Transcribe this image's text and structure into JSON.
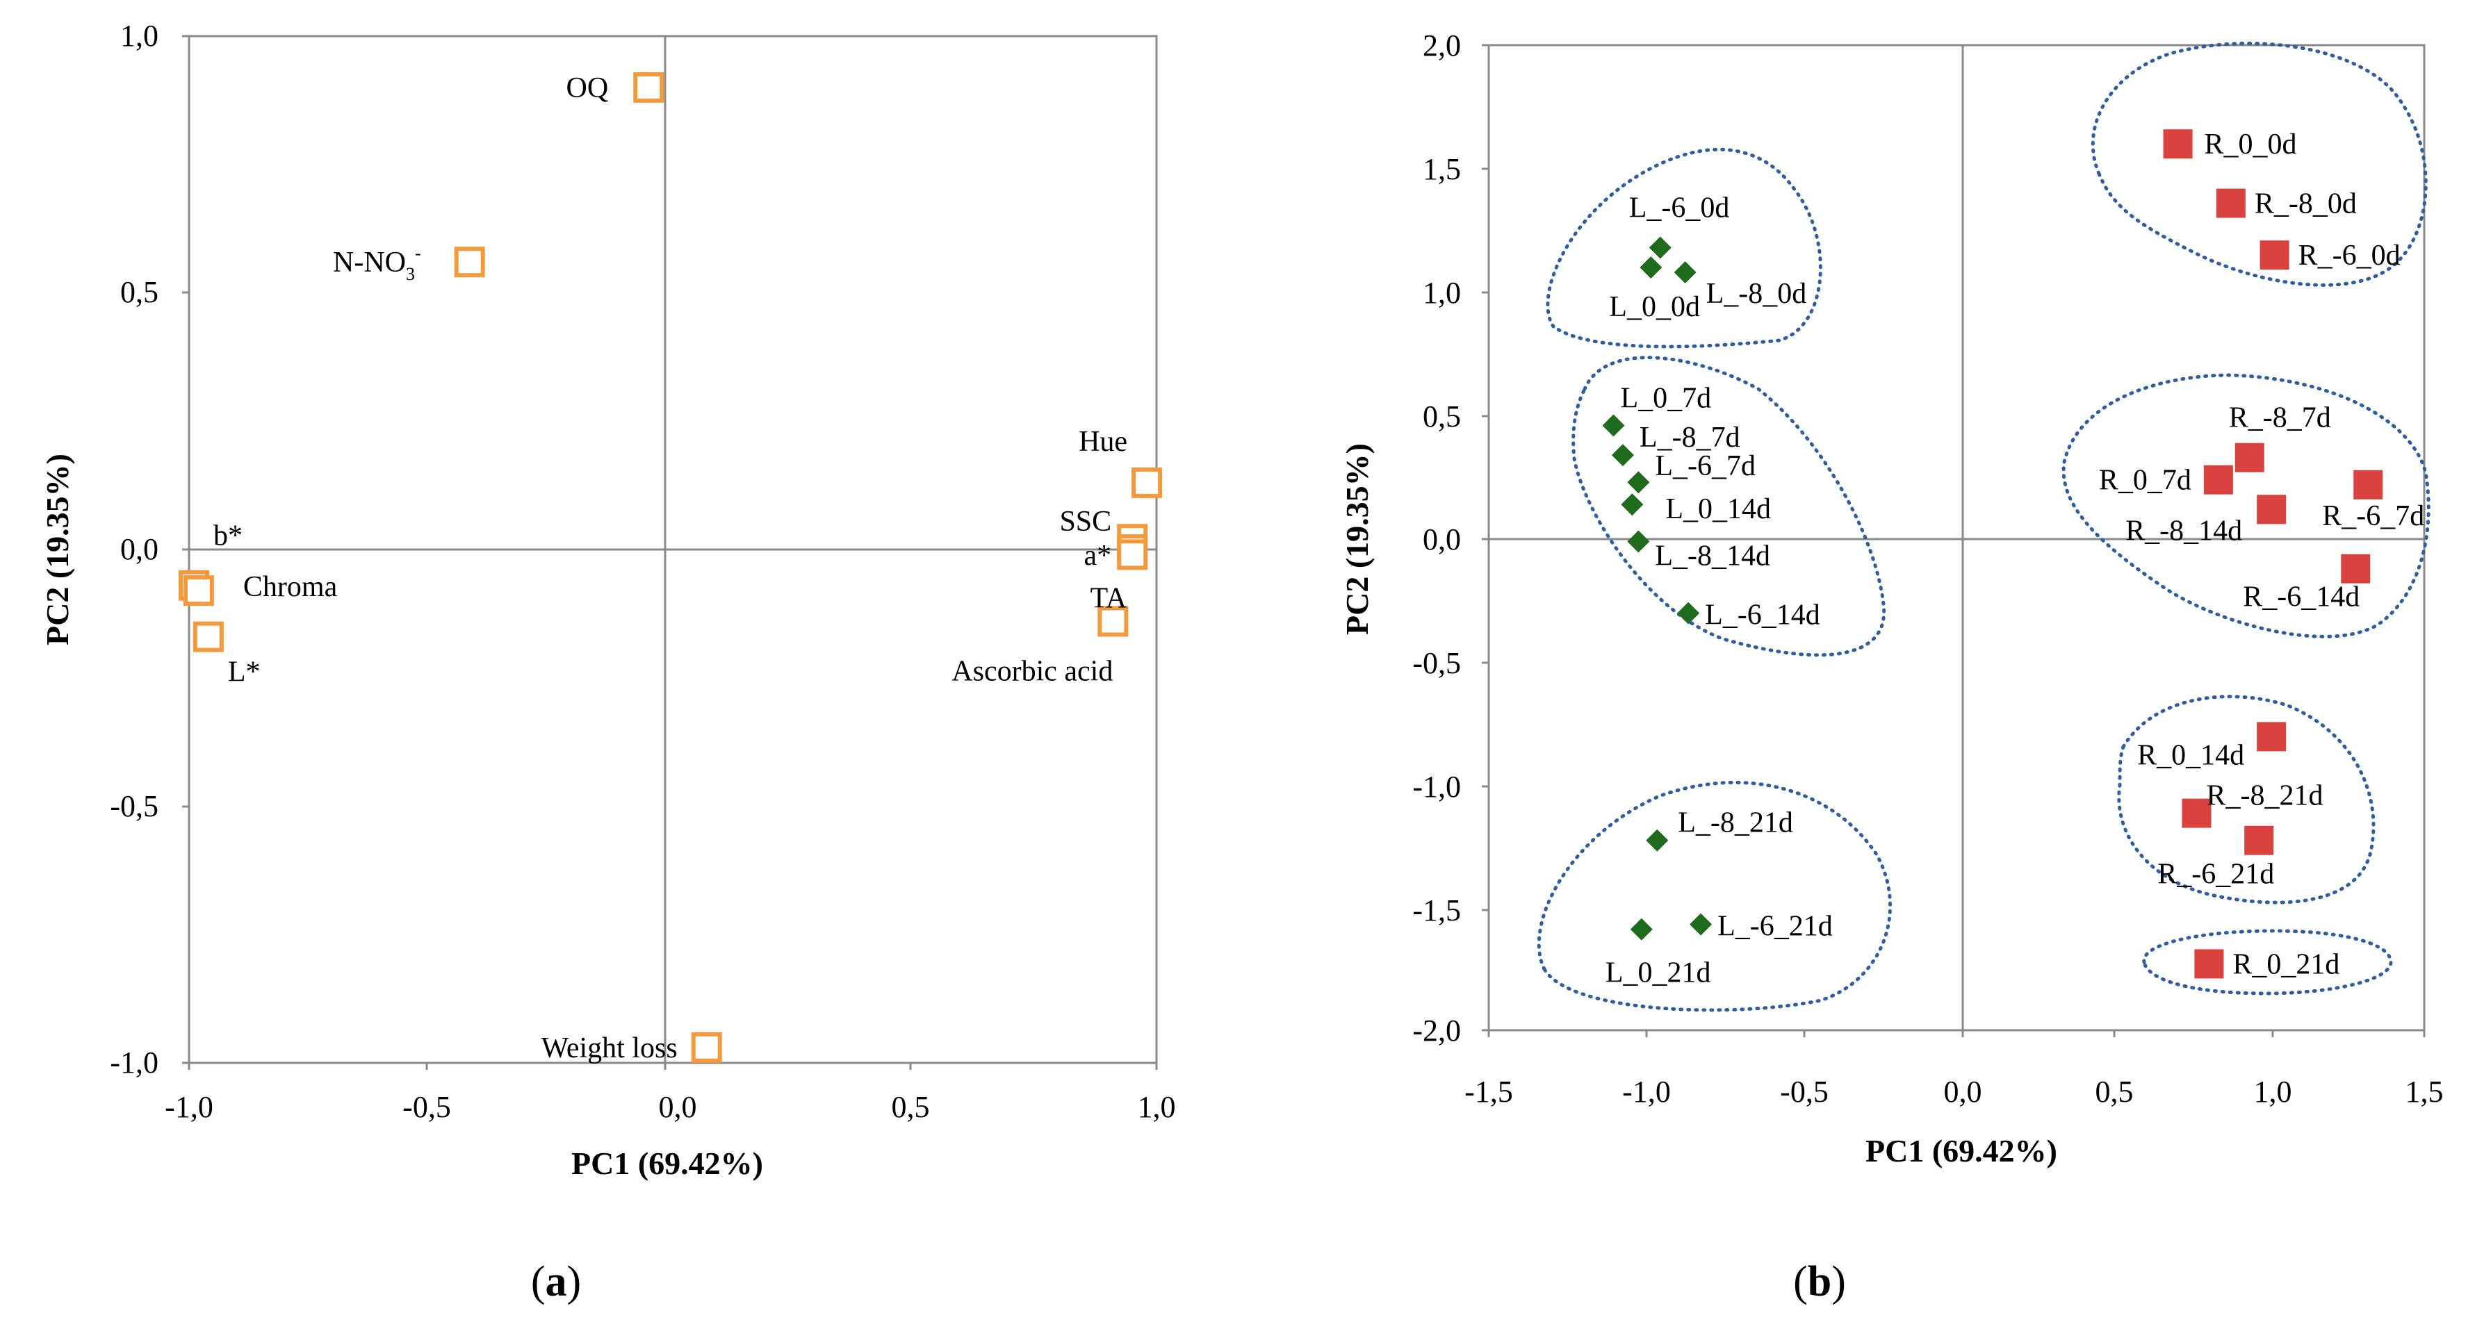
{
  "chart_data": [
    {
      "type": "scatter",
      "panel_label": "a",
      "xlabel": "PC1 (69.42%)",
      "ylabel": "PC2 (19.35%)",
      "xlim": [
        -1.0,
        1.0
      ],
      "ylim": [
        -1.0,
        1.0
      ],
      "xticks": [
        "-1,0",
        "-0,5",
        "0,0",
        "0,5",
        "1,0"
      ],
      "yticks": [
        "1,0",
        "0,5",
        "0,0",
        "-0,5",
        "-1,0"
      ],
      "marker_color": "#F39A3D",
      "points": [
        {
          "label": "OQ",
          "x": -0.05,
          "y": 0.9
        },
        {
          "label": "N-NO3-",
          "x": -0.42,
          "y": 0.56
        },
        {
          "label": "Hue",
          "x": 0.98,
          "y": 0.13
        },
        {
          "label": "SSC",
          "x": 0.95,
          "y": 0.02
        },
        {
          "label": "a*",
          "x": 0.95,
          "y": 0.0
        },
        {
          "label": "TA",
          "x": 0.95,
          "y": -0.01
        },
        {
          "label": "Ascorbic acid",
          "x": 0.91,
          "y": -0.14
        },
        {
          "label": "b*",
          "x": -0.99,
          "y": -0.07
        },
        {
          "label": "Chroma",
          "x": -0.98,
          "y": -0.08
        },
        {
          "label": "L*",
          "x": -0.96,
          "y": -0.17
        },
        {
          "label": "Weight loss",
          "x": 0.07,
          "y": -0.97
        }
      ],
      "n_no3_parts": {
        "base": "N-NO",
        "sub": "3",
        "sup": "-"
      }
    },
    {
      "type": "scatter",
      "panel_label": "b",
      "xlabel": "PC1 (69.42%)",
      "ylabel": "PC2 (19.35%)",
      "xlim": [
        -1.5,
        1.5
      ],
      "ylim": [
        -2.0,
        2.0
      ],
      "xticks": [
        "-1,5",
        "-1,0",
        "-0,5",
        "0,0",
        "0,5",
        "1,0",
        "1,5"
      ],
      "yticks": [
        "2,0",
        "1,5",
        "1,0",
        "0,5",
        "0,0",
        "-0,5",
        "-1,0",
        "-1,5",
        "-2,0"
      ],
      "series": [
        {
          "name": "L",
          "marker": "diamond",
          "color": "#1E6B1E",
          "points": [
            {
              "label": "L_-6_0d",
              "x": -0.95,
              "y": 1.18
            },
            {
              "label": "L_0_0d",
              "x": -0.98,
              "y": 1.1
            },
            {
              "label": "L_-8_0d",
              "x": -0.87,
              "y": 1.08
            },
            {
              "label": "L_0_7d",
              "x": -1.1,
              "y": 0.46
            },
            {
              "label": "L_-8_7d",
              "x": -1.07,
              "y": 0.34
            },
            {
              "label": "L_-6_7d",
              "x": -1.02,
              "y": 0.23
            },
            {
              "label": "L_0_14d",
              "x": -1.04,
              "y": 0.14
            },
            {
              "label": "L_-8_14d",
              "x": -1.02,
              "y": -0.01
            },
            {
              "label": "L_-6_14d",
              "x": -0.86,
              "y": -0.3
            },
            {
              "label": "L_-8_21d",
              "x": -0.96,
              "y": -1.22
            },
            {
              "label": "L_-6_21d",
              "x": -0.82,
              "y": -1.56
            },
            {
              "label": "L_0_21d",
              "x": -1.01,
              "y": -1.58
            }
          ]
        },
        {
          "name": "R",
          "marker": "square",
          "color": "#D9423F",
          "points": [
            {
              "label": "R_0_0d",
              "x": 0.71,
              "y": 1.6
            },
            {
              "label": "R_-8_0d",
              "x": 0.88,
              "y": 1.36
            },
            {
              "label": "R_-6_0d",
              "x": 1.02,
              "y": 1.15
            },
            {
              "label": "R_-8_7d",
              "x": 0.94,
              "y": 0.33
            },
            {
              "label": "R_0_7d",
              "x": 0.84,
              "y": 0.24
            },
            {
              "label": "R_-6_7d",
              "x": 1.32,
              "y": 0.22
            },
            {
              "label": "R_-8_14d",
              "x": 1.01,
              "y": 0.12
            },
            {
              "label": "R_-6_14d",
              "x": 1.28,
              "y": -0.12
            },
            {
              "label": "R_0_14d",
              "x": 1.01,
              "y": -0.8
            },
            {
              "label": "R_-8_21d",
              "x": 0.77,
              "y": -1.11
            },
            {
              "label": "R_-6_21d",
              "x": 0.97,
              "y": -1.22
            },
            {
              "label": "R_0_21d",
              "x": 0.81,
              "y": -1.72
            }
          ]
        }
      ],
      "cluster_color": "#2E5E9E"
    }
  ]
}
